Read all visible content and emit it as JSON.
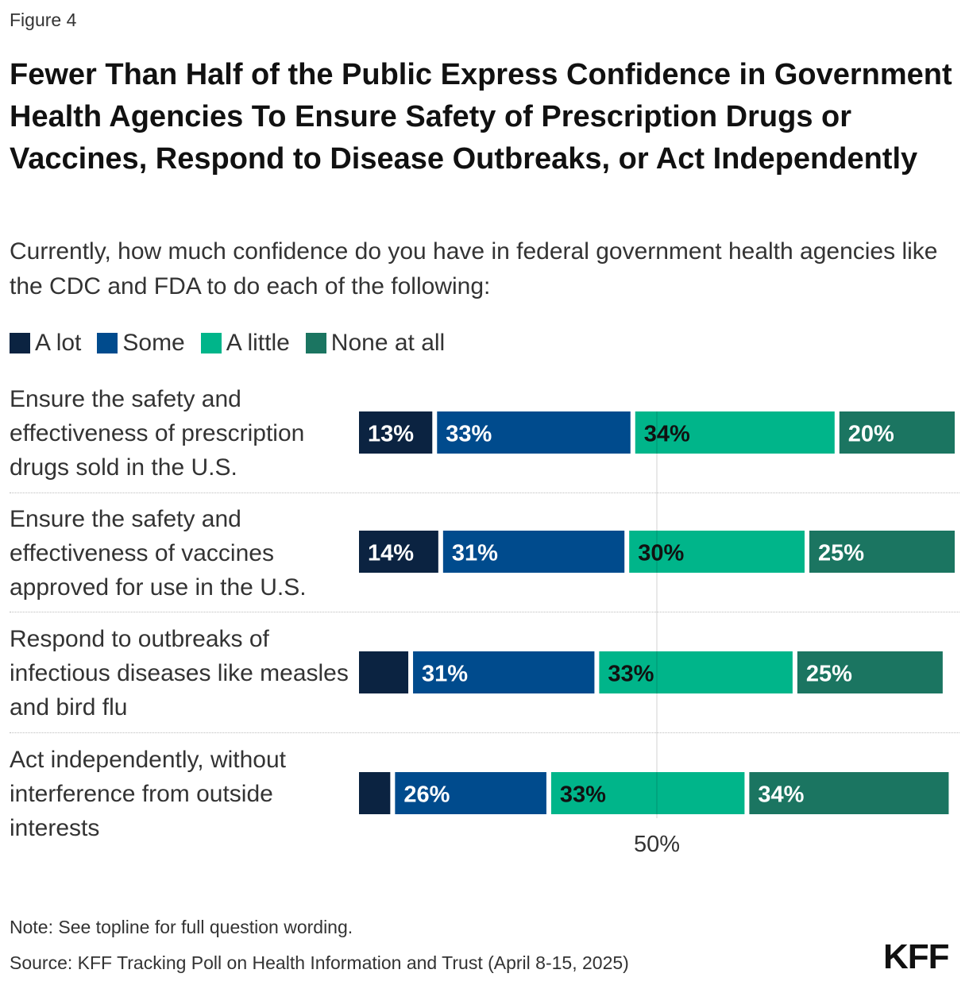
{
  "figure_label": "Figure 4",
  "chart_data": {
    "type": "bar",
    "orientation": "horizontal",
    "stacked": true,
    "title": "Fewer Than Half of the Public Express Confidence in Government Health Agencies To Ensure Safety of Prescription Drugs or Vaccines, Respond to Disease Outbreaks, or Act Independently",
    "subtitle": "Currently, how much confidence do you have in federal government health agencies like the CDC and FDA to do each of the following:",
    "categories": [
      "Ensure the safety and effectiveness of prescription drugs sold in the U.S.",
      "Ensure the safety and effectiveness of vaccines approved for use in the U.S.",
      "Respond to outbreaks of infectious diseases like measles and bird flu",
      "Act independently, without interference from outside interests"
    ],
    "series": [
      {
        "name": "A lot",
        "color": "#0b2341",
        "values": [
          13,
          14,
          9,
          6
        ],
        "labels": [
          "13%",
          "14%",
          "",
          ""
        ]
      },
      {
        "name": "Some",
        "color": "#004b8d",
        "values": [
          33,
          31,
          31,
          26
        ],
        "labels": [
          "33%",
          "31%",
          "31%",
          "26%"
        ]
      },
      {
        "name": "A little",
        "color": "#00b58a",
        "values": [
          34,
          30,
          33,
          33
        ],
        "labels": [
          "34%",
          "30%",
          "33%",
          "33%"
        ]
      },
      {
        "name": "None at all",
        "color": "#1b7561",
        "values": [
          20,
          25,
          25,
          34
        ],
        "labels": [
          "20%",
          "25%",
          "25%",
          "34%"
        ]
      }
    ],
    "xlim": [
      0,
      100
    ],
    "reference_line": {
      "value": 50,
      "label": "50%"
    },
    "legend_position": "top-left"
  },
  "footer": {
    "note": "Note: See topline for full question wording.",
    "source": "Source: KFF Tracking Poll on Health Information and Trust (April 8-15, 2025)",
    "logo": "KFF"
  }
}
